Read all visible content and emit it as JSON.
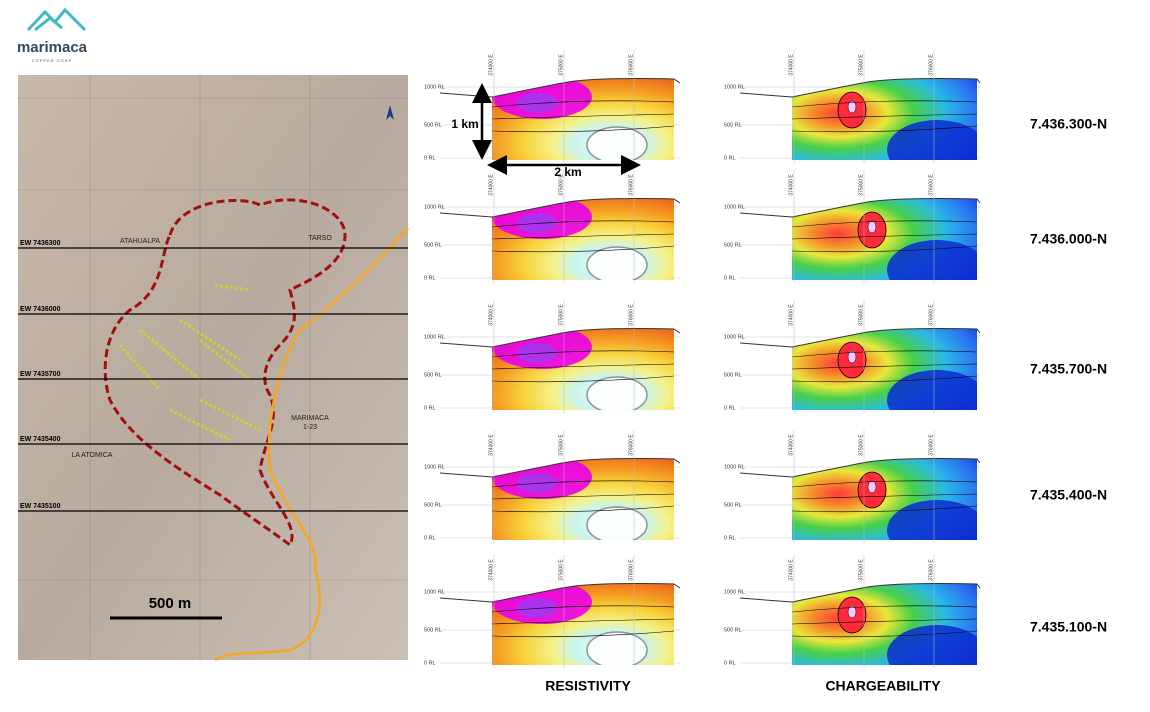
{
  "logo": {
    "name": "marimaca",
    "tagline": "COPPER CORP"
  },
  "map": {
    "section_lines": [
      "EW 7436300",
      "EW 7436000",
      "EW 7435700",
      "EW 7435400",
      "EW 7435100"
    ],
    "places": [
      "ATAHUALPA",
      "TARSO",
      "MARIMACA 1-23",
      "LA ATOMICA"
    ],
    "scale_bar": "500 m"
  },
  "sections": {
    "columns": [
      "RESISTIVITY",
      "CHARGEABILITY"
    ],
    "rl_labels": [
      "1000 RL",
      "500 RL",
      "0 RL"
    ],
    "easting_labels": [
      "374000 E",
      "375000 E",
      "376000 E"
    ],
    "scale": {
      "vertical": "1 km",
      "horizontal": "2 km"
    },
    "rows": [
      "7.436.300-N",
      "7.436.000-N",
      "7.435.700-N",
      "7.435.400-N",
      "7.435.100-N"
    ]
  }
}
